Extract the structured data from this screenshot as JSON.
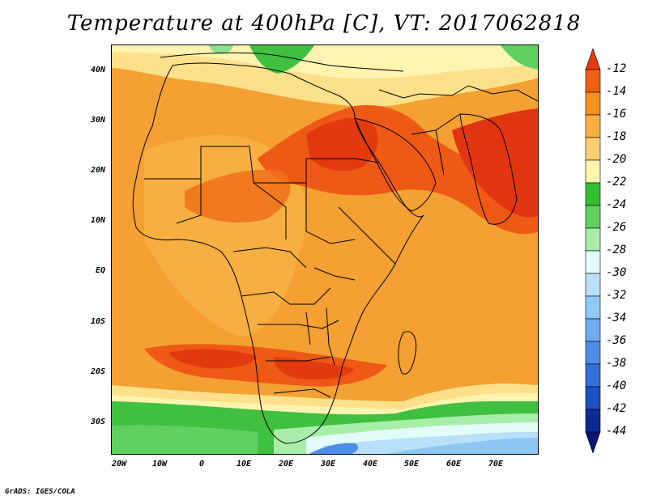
{
  "title": "Temperature at 400hPa [C], VT: 2017062818",
  "credit": "GrADS: IGES/COLA",
  "axes": {
    "y_labels": [
      "40N",
      "30N",
      "20N",
      "10N",
      "EQ",
      "10S",
      "20S",
      "30S"
    ],
    "x_labels": [
      "20W",
      "10W",
      "0",
      "10E",
      "20E",
      "30E",
      "40E",
      "50E",
      "60E",
      "70E"
    ]
  },
  "colorbar": {
    "labels": [
      "-12",
      "-14",
      "-16",
      "-18",
      "-20",
      "-22",
      "-24",
      "-26",
      "-28",
      "-30",
      "-32",
      "-34",
      "-36",
      "-38",
      "-40",
      "-42",
      "-44"
    ],
    "colors": [
      "#e63a10",
      "#f06010",
      "#f5901a",
      "#fab040",
      "#fcd070",
      "#fef4b0",
      "#30c030",
      "#60d060",
      "#a8eea8",
      "#e2fdf8",
      "#b8e0f8",
      "#90c8f6",
      "#70aaf0",
      "#4e8ee8",
      "#3470dc",
      "#1c52c4",
      "#0a2a96",
      "#0c1670"
    ]
  },
  "colors": {
    "base_field": "#f4a032",
    "warm_core": "#e84a1a",
    "hot_core": "#e03510",
    "cool_south": "#8ec6f4",
    "green_band": "#40c040",
    "country_borders": "#000000"
  }
}
